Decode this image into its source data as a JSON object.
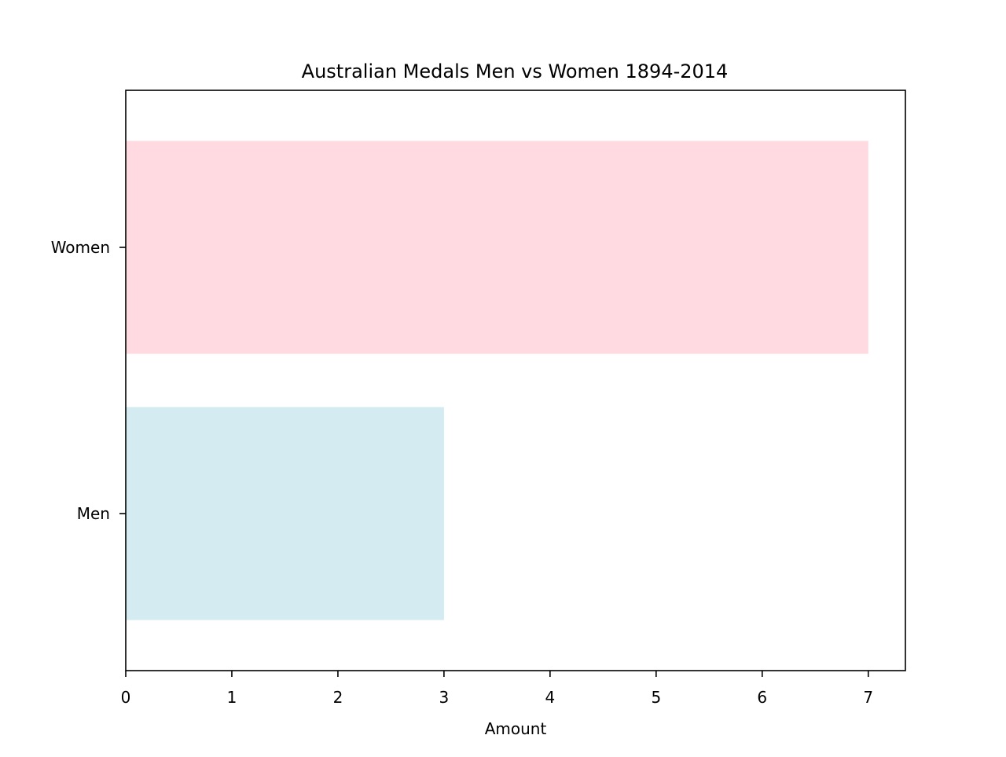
{
  "chart_data": {
    "type": "bar",
    "orientation": "horizontal",
    "title": "Australian Medals Men vs Women 1894-2014",
    "xlabel": "Amount",
    "ylabel": "",
    "categories": [
      "Men",
      "Women"
    ],
    "values": [
      3,
      7
    ],
    "colors": [
      "#d4ebf1",
      "#ffdae0"
    ],
    "xlim": [
      0,
      7.35
    ],
    "xticks": [
      0,
      1,
      2,
      3,
      4,
      5,
      6,
      7
    ],
    "grid": false,
    "legend": "none"
  }
}
